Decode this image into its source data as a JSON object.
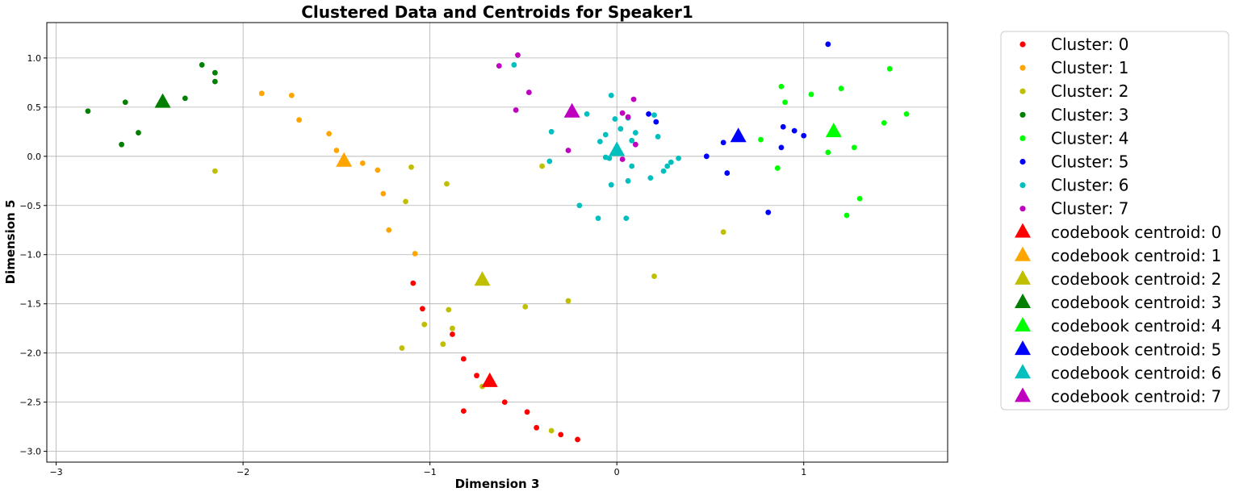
{
  "chart_data": {
    "type": "scatter",
    "title": "Clustered Data and Centroids for Speaker1",
    "xlabel": "Dimension 3",
    "ylabel": "Dimension 5",
    "xlim": [
      -3.05,
      1.77
    ],
    "ylim": [
      -3.11,
      1.36
    ],
    "xticks": [
      -3,
      -2,
      -1,
      0,
      1
    ],
    "yticks": [
      1.0,
      0.5,
      0.0,
      -0.5,
      -1.0,
      -1.5,
      -2.0,
      -2.5,
      -3.0
    ],
    "xtick_labels": [
      "−3",
      "−2",
      "−1",
      "0",
      "1"
    ],
    "ytick_labels": [
      "1.0",
      "0.5",
      "0.0",
      "−0.5",
      "−1.0",
      "−1.5",
      "−2.0",
      "−2.5",
      "−3.0"
    ],
    "grid": true,
    "legend_position": "outside-right",
    "clusters": [
      {
        "name": "Cluster: 0",
        "color": "#ff0000",
        "points": [
          [
            -1.09,
            -1.29
          ],
          [
            -1.04,
            -1.55
          ],
          [
            -0.88,
            -1.81
          ],
          [
            -0.82,
            -2.06
          ],
          [
            -0.75,
            -2.23
          ],
          [
            -0.82,
            -2.59
          ],
          [
            -0.6,
            -2.5
          ],
          [
            -0.48,
            -2.6
          ],
          [
            -0.43,
            -2.76
          ],
          [
            -0.3,
            -2.83
          ],
          [
            -0.21,
            -2.88
          ]
        ]
      },
      {
        "name": "Cluster: 1",
        "color": "#ffa500",
        "points": [
          [
            -1.9,
            0.64
          ],
          [
            -1.74,
            0.62
          ],
          [
            -1.7,
            0.37
          ],
          [
            -1.54,
            0.23
          ],
          [
            -1.5,
            0.06
          ],
          [
            -1.36,
            -0.07
          ],
          [
            -1.28,
            -0.14
          ],
          [
            -1.25,
            -0.38
          ],
          [
            -1.22,
            -0.75
          ],
          [
            -1.08,
            -0.99
          ]
        ]
      },
      {
        "name": "Cluster: 2",
        "color": "#bfbf00",
        "points": [
          [
            -2.15,
            -0.15
          ],
          [
            -1.1,
            -0.11
          ],
          [
            -1.13,
            -0.46
          ],
          [
            -0.91,
            -0.28
          ],
          [
            -0.4,
            -0.1
          ],
          [
            -0.9,
            -1.56
          ],
          [
            -1.03,
            -1.71
          ],
          [
            -0.88,
            -1.75
          ],
          [
            -1.15,
            -1.95
          ],
          [
            -0.93,
            -1.91
          ],
          [
            -0.49,
            -1.53
          ],
          [
            -0.26,
            -1.47
          ],
          [
            -0.72,
            -2.34
          ],
          [
            -0.35,
            -2.79
          ],
          [
            0.2,
            -1.22
          ],
          [
            0.57,
            -0.77
          ]
        ]
      },
      {
        "name": "Cluster: 3",
        "color": "#007f00",
        "points": [
          [
            -2.83,
            0.46
          ],
          [
            -2.63,
            0.55
          ],
          [
            -2.65,
            0.12
          ],
          [
            -2.56,
            0.24
          ],
          [
            -2.31,
            0.59
          ],
          [
            -2.22,
            0.93
          ],
          [
            -2.15,
            0.85
          ],
          [
            -2.15,
            0.76
          ]
        ]
      },
      {
        "name": "Cluster: 4",
        "color": "#00ff00",
        "points": [
          [
            0.88,
            0.71
          ],
          [
            0.9,
            0.55
          ],
          [
            1.04,
            0.63
          ],
          [
            1.2,
            0.69
          ],
          [
            1.46,
            0.89
          ],
          [
            1.55,
            0.43
          ],
          [
            1.43,
            0.34
          ],
          [
            1.27,
            0.09
          ],
          [
            0.77,
            0.17
          ],
          [
            0.86,
            -0.12
          ],
          [
            1.13,
            0.04
          ],
          [
            1.3,
            -0.43
          ],
          [
            1.23,
            -0.6
          ]
        ]
      },
      {
        "name": "Cluster: 5",
        "color": "#0000ff",
        "points": [
          [
            1.13,
            1.14
          ],
          [
            0.89,
            0.3
          ],
          [
            0.95,
            0.26
          ],
          [
            1.0,
            0.21
          ],
          [
            0.88,
            0.09
          ],
          [
            0.57,
            0.14
          ],
          [
            0.48,
            0.0
          ],
          [
            0.59,
            -0.17
          ],
          [
            0.81,
            -0.57
          ],
          [
            0.17,
            0.43
          ],
          [
            0.21,
            0.35
          ]
        ]
      },
      {
        "name": "Cluster: 6",
        "color": "#00bfbf",
        "points": [
          [
            -0.55,
            0.93
          ],
          [
            -0.16,
            0.43
          ],
          [
            -0.03,
            0.62
          ],
          [
            -0.35,
            0.25
          ],
          [
            -0.01,
            0.38
          ],
          [
            0.02,
            0.28
          ],
          [
            -0.06,
            0.22
          ],
          [
            -0.09,
            0.15
          ],
          [
            -0.06,
            -0.01
          ],
          [
            -0.04,
            -0.02
          ],
          [
            0.06,
            0.39
          ],
          [
            0.1,
            0.24
          ],
          [
            0.08,
            0.16
          ],
          [
            0.2,
            0.42
          ],
          [
            0.22,
            0.2
          ],
          [
            0.08,
            -0.1
          ],
          [
            0.18,
            -0.22
          ],
          [
            0.06,
            -0.25
          ],
          [
            -0.03,
            -0.29
          ],
          [
            -0.36,
            -0.05
          ],
          [
            -0.2,
            -0.5
          ],
          [
            -0.1,
            -0.63
          ],
          [
            0.05,
            -0.63
          ],
          [
            0.25,
            -0.15
          ],
          [
            0.27,
            -0.1
          ],
          [
            0.29,
            -0.06
          ],
          [
            0.33,
            -0.02
          ]
        ]
      },
      {
        "name": "Cluster: 7",
        "color": "#bf00bf",
        "points": [
          [
            -0.63,
            0.92
          ],
          [
            -0.53,
            1.03
          ],
          [
            -0.47,
            0.65
          ],
          [
            -0.54,
            0.47
          ],
          [
            -0.26,
            0.06
          ],
          [
            0.03,
            0.44
          ],
          [
            0.09,
            0.58
          ],
          [
            0.06,
            0.4
          ],
          [
            0.1,
            0.12
          ],
          [
            0.03,
            -0.03
          ]
        ]
      }
    ],
    "centroids": [
      {
        "name": "codebook centroid: 0",
        "color": "#ff0000",
        "x": -0.68,
        "y": -2.29
      },
      {
        "name": "codebook centroid: 1",
        "color": "#ffa500",
        "x": -1.46,
        "y": -0.05
      },
      {
        "name": "codebook centroid: 2",
        "color": "#bfbf00",
        "x": -0.72,
        "y": -1.26
      },
      {
        "name": "codebook centroid: 3",
        "color": "#007f00",
        "x": -2.43,
        "y": 0.55
      },
      {
        "name": "codebook centroid: 4",
        "color": "#00ff00",
        "x": 1.16,
        "y": 0.25
      },
      {
        "name": "codebook centroid: 5",
        "color": "#0000ff",
        "x": 0.65,
        "y": 0.2
      },
      {
        "name": "codebook centroid: 6",
        "color": "#00bfbf",
        "x": 0.0,
        "y": 0.06
      },
      {
        "name": "codebook centroid: 7",
        "color": "#bf00bf",
        "x": -0.24,
        "y": 0.45
      }
    ]
  }
}
